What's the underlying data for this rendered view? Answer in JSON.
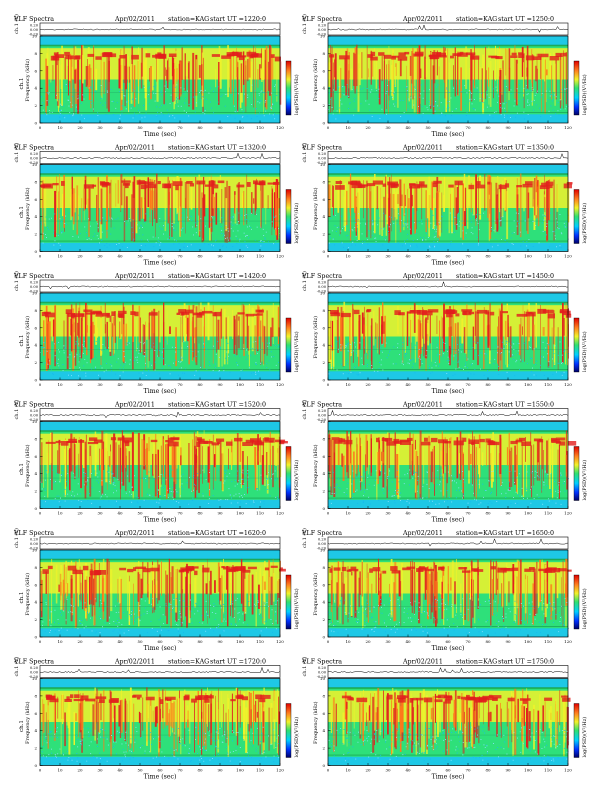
{
  "header": {
    "title": "VLF Spectra",
    "date": "Apr/02/2011",
    "station": "station=KAG",
    "start_prefix": "start  UT  ="
  },
  "axes": {
    "time_label": "Time  (sec)",
    "freq_label": "Frequency  (kHz)",
    "channel_label": "ch.1",
    "trace_label": "ch.1 (V)",
    "colorbar_label": "log(PSD)(V²/Hz)"
  },
  "colors": {
    "background_blue": "#1ec8e6",
    "band_green": "#2ee07a",
    "yellow": "#f2f22a",
    "red": "#e21d1d"
  },
  "chart_data": {
    "type": "heatmap",
    "x_ticks": [
      "0",
      "10",
      "20",
      "30",
      "40",
      "50",
      "60",
      "70",
      "80",
      "90",
      "100",
      "110",
      "120"
    ],
    "freq_ticks": [
      "0",
      "2",
      "4",
      "6",
      "8",
      "10"
    ],
    "trace_ticks": [
      "0.20",
      "0.00",
      "-0.20"
    ],
    "xlim": [
      0,
      120
    ],
    "ylim_khz": [
      0,
      10
    ],
    "panels": [
      {
        "start": "1220:0"
      },
      {
        "start": "1250:0"
      },
      {
        "start": "1320:0"
      },
      {
        "start": "1350:0"
      },
      {
        "start": "1420:0"
      },
      {
        "start": "1450:0"
      },
      {
        "start": "1520:0"
      },
      {
        "start": "1550:0"
      },
      {
        "start": "1620:0"
      },
      {
        "start": "1650:0"
      },
      {
        "start": "1720:0"
      },
      {
        "start": "1750:0"
      }
    ]
  }
}
